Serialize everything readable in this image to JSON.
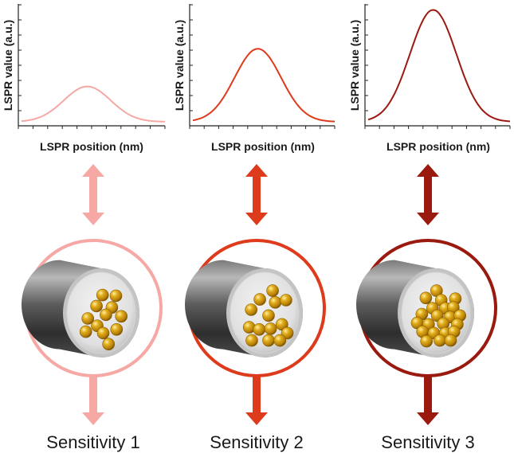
{
  "panels": [
    {
      "ylabel": "LSPR value (a.u.)",
      "xlabel": "LSPR position (nm)",
      "sensitivity": "Sensitivity 1",
      "color": "#f6a8a4",
      "peak": 0.3,
      "particles": [
        [
          0.52,
          0.3
        ],
        [
          0.72,
          0.31
        ],
        [
          0.43,
          0.45
        ],
        [
          0.66,
          0.47
        ],
        [
          0.57,
          0.57
        ],
        [
          0.8,
          0.59
        ],
        [
          0.3,
          0.62
        ],
        [
          0.44,
          0.72
        ],
        [
          0.27,
          0.8
        ],
        [
          0.53,
          0.82
        ],
        [
          0.73,
          0.77
        ],
        [
          0.61,
          0.97
        ]
      ]
    },
    {
      "ylabel": "LSPR value (a.u.)",
      "xlabel": "LSPR position (nm)",
      "sensitivity": "Sensitivity 2",
      "color": "#de3a1c",
      "peak": 0.62,
      "particles": [
        [
          0.62,
          0.24
        ],
        [
          0.43,
          0.36
        ],
        [
          0.66,
          0.4
        ],
        [
          0.82,
          0.37
        ],
        [
          0.3,
          0.5
        ],
        [
          0.56,
          0.58
        ],
        [
          0.76,
          0.7
        ],
        [
          0.27,
          0.74
        ],
        [
          0.42,
          0.77
        ],
        [
          0.59,
          0.76
        ],
        [
          0.84,
          0.82
        ],
        [
          0.31,
          0.92
        ],
        [
          0.56,
          0.92
        ],
        [
          0.73,
          0.92
        ]
      ]
    },
    {
      "ylabel": "LSPR value (a.u.)",
      "xlabel": "LSPR position (nm)",
      "sensitivity": "Sensitivity 3",
      "color": "#9b1a10",
      "peak": 0.95,
      "particles": [
        [
          0.51,
          0.24
        ],
        [
          0.35,
          0.34
        ],
        [
          0.58,
          0.37
        ],
        [
          0.79,
          0.35
        ],
        [
          0.45,
          0.48
        ],
        [
          0.64,
          0.48
        ],
        [
          0.76,
          0.47
        ],
        [
          0.29,
          0.56
        ],
        [
          0.52,
          0.58
        ],
        [
          0.71,
          0.6
        ],
        [
          0.86,
          0.58
        ],
        [
          0.22,
          0.68
        ],
        [
          0.39,
          0.7
        ],
        [
          0.61,
          0.69
        ],
        [
          0.82,
          0.7
        ],
        [
          0.3,
          0.8
        ],
        [
          0.47,
          0.82
        ],
        [
          0.64,
          0.82
        ],
        [
          0.77,
          0.8
        ],
        [
          0.36,
          0.93
        ],
        [
          0.56,
          0.92
        ],
        [
          0.72,
          0.92
        ]
      ]
    }
  ]
}
